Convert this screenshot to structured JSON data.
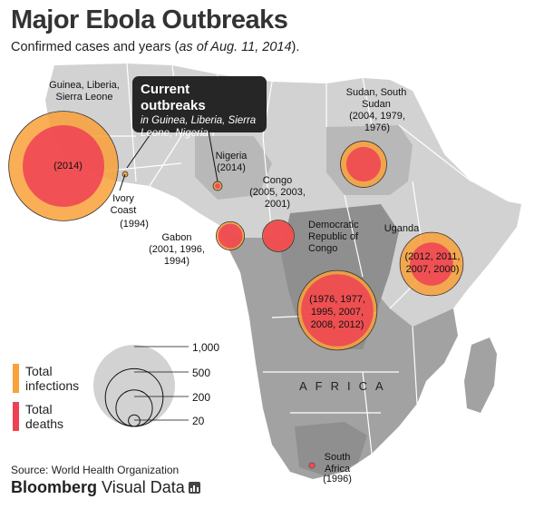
{
  "title": "Major Ebola Outbreaks",
  "subtitle": {
    "text": "Confirmed cases and years (",
    "italic": "as of Aug. 11, 2014",
    "end": ")."
  },
  "callout": {
    "title": "Current outbreaks",
    "subtitle": "in Guinea, Liberia, Sierra Leone, Nigeria"
  },
  "region_label": "AFRICA",
  "outbreaks": [
    {
      "id": "west-africa",
      "name": "Guinea, Liberia, Sierra Leone",
      "years": "(2014)",
      "infections": 1800,
      "deaths": 1000
    },
    {
      "id": "ivory-coast",
      "name": "Ivory Coast",
      "years": "(1994)",
      "infections": 1,
      "deaths": 0
    },
    {
      "id": "nigeria",
      "name": "Nigeria",
      "years": "(2014)",
      "infections": 12,
      "deaths": 3
    },
    {
      "id": "gabon",
      "name": "Gabon",
      "years": "(2001, 1996, 1994)",
      "infections": 120,
      "deaths": 90
    },
    {
      "id": "congo",
      "name": "Congo",
      "years": "(2005, 2003, 2001)",
      "infections": 150,
      "deaths": 140
    },
    {
      "id": "sudan",
      "name": "Sudan, South Sudan",
      "years": "(2004, 1979, 1976)",
      "infections": 320,
      "deaths": 180
    },
    {
      "id": "drc",
      "name": "Democratic Republic of Congo",
      "years": "(1976, 1977, 1995, 2007, 2008, 2012)",
      "infections": 950,
      "deaths": 780
    },
    {
      "id": "uganda",
      "name": "Uganda",
      "years": "(2012, 2011, 2007, 2000)",
      "infections": 600,
      "deaths": 280
    },
    {
      "id": "south-africa",
      "name": "South Africa",
      "years": "(1996)",
      "infections": 2,
      "deaths": 1
    }
  ],
  "legend": {
    "infections_label": "Total infections",
    "deaths_label": "Total deaths",
    "infections_color": "#f9a13a",
    "deaths_color": "#ef4154",
    "scale": [
      {
        "value": 1000,
        "label": "1,000"
      },
      {
        "value": 500,
        "label": "500"
      },
      {
        "value": 200,
        "label": "200"
      },
      {
        "value": 20,
        "label": "20"
      }
    ]
  },
  "source": "Source: World Health Organization",
  "brand": {
    "bold": "Bloomberg",
    "regular": " Visual Data"
  }
}
